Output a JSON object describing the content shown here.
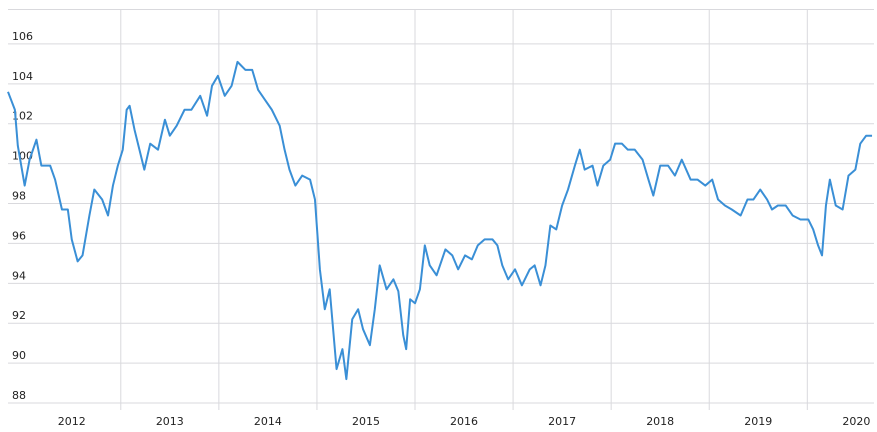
{
  "chart_data": {
    "type": "line",
    "x": [
      2011.85,
      2011.92,
      2011.95,
      2012.02,
      2012.07,
      2012.14,
      2012.19,
      2012.28,
      2012.33,
      2012.4,
      2012.46,
      2012.5,
      2012.56,
      2012.61,
      2012.68,
      2012.73,
      2012.81,
      2012.87,
      2012.92,
      2012.97,
      2013.02,
      2013.06,
      2013.09,
      2013.14,
      2013.19,
      2013.24,
      2013.3,
      2013.38,
      2013.45,
      2013.5,
      2013.57,
      2013.65,
      2013.72,
      2013.81,
      2013.88,
      2013.93,
      2013.99,
      2014.06,
      2014.13,
      2014.19,
      2014.27,
      2014.34,
      2014.4,
      2014.47,
      2014.54,
      2014.62,
      2014.67,
      2014.72,
      2014.78,
      2014.85,
      2014.93,
      2014.98,
      2015.03,
      2015.08,
      2015.13,
      2015.2,
      2015.26,
      2015.3,
      2015.36,
      2015.42,
      2015.47,
      2015.54,
      2015.59,
      2015.64,
      2015.71,
      2015.78,
      2015.83,
      2015.88,
      2015.91,
      2015.95,
      2016.0,
      2016.05,
      2016.1,
      2016.15,
      2016.22,
      2016.31,
      2016.38,
      2016.44,
      2016.51,
      2016.58,
      2016.64,
      2016.71,
      2016.79,
      2016.84,
      2016.89,
      2016.95,
      2017.02,
      2017.09,
      2017.17,
      2017.22,
      2017.28,
      2017.33,
      2017.38,
      2017.44,
      2017.5,
      2017.56,
      2017.63,
      2017.68,
      2017.73,
      2017.81,
      2017.86,
      2017.92,
      2017.99,
      2018.04,
      2018.11,
      2018.17,
      2018.24,
      2018.32,
      2018.38,
      2018.43,
      2018.5,
      2018.58,
      2018.65,
      2018.72,
      2018.81,
      2018.88,
      2018.96,
      2019.03,
      2019.09,
      2019.16,
      2019.23,
      2019.32,
      2019.39,
      2019.45,
      2019.52,
      2019.59,
      2019.64,
      2019.7,
      2019.78,
      2019.85,
      2019.93,
      2020.01,
      2020.06,
      2020.11,
      2020.15,
      2020.19,
      2020.23,
      2020.29,
      2020.36,
      2020.42,
      2020.49,
      2020.54,
      2020.6,
      2020.66
    ],
    "series": [
      {
        "color": "#3a8fd6",
        "values": [
          103.6,
          102.7,
          100.9,
          98.9,
          100.2,
          101.2,
          99.9,
          99.9,
          99.2,
          97.7,
          97.7,
          96.2,
          95.1,
          95.4,
          97.4,
          98.7,
          98.2,
          97.4,
          98.9,
          99.9,
          100.7,
          102.7,
          102.9,
          101.7,
          100.7,
          99.7,
          101.0,
          100.7,
          102.2,
          101.4,
          101.9,
          102.7,
          102.7,
          103.4,
          102.4,
          103.9,
          104.4,
          103.4,
          103.9,
          105.1,
          104.7,
          104.7,
          103.7,
          103.2,
          102.7,
          101.9,
          100.7,
          99.7,
          98.9,
          99.4,
          99.2,
          98.2,
          94.7,
          92.7,
          93.7,
          89.7,
          90.7,
          89.2,
          92.2,
          92.7,
          91.7,
          90.9,
          92.7,
          94.9,
          93.7,
          94.2,
          93.6,
          91.4,
          90.7,
          93.2,
          93.0,
          93.7,
          95.9,
          94.9,
          94.4,
          95.7,
          95.4,
          94.7,
          95.4,
          95.2,
          95.9,
          96.2,
          96.2,
          95.9,
          94.9,
          94.2,
          94.7,
          93.9,
          94.7,
          94.9,
          93.9,
          94.9,
          96.9,
          96.7,
          97.9,
          98.7,
          99.9,
          100.7,
          99.7,
          99.9,
          98.9,
          99.9,
          100.2,
          101.0,
          101.0,
          100.7,
          100.7,
          100.2,
          99.2,
          98.4,
          99.9,
          99.9,
          99.4,
          100.2,
          99.2,
          99.2,
          98.9,
          99.2,
          98.2,
          97.9,
          97.7,
          97.4,
          98.2,
          98.2,
          98.7,
          98.2,
          97.7,
          97.9,
          97.9,
          97.4,
          97.2,
          97.2,
          96.7,
          95.9,
          95.4,
          97.9,
          99.2,
          97.9,
          97.7,
          99.4,
          99.7,
          101.0,
          101.4,
          101.4
        ]
      }
    ],
    "xlim": [
      2011.85,
      2020.68
    ],
    "xticks": [
      {
        "value": 2012.5,
        "label": "2012"
      },
      {
        "value": 2013.5,
        "label": "2013"
      },
      {
        "value": 2014.5,
        "label": "2014"
      },
      {
        "value": 2015.5,
        "label": "2015"
      },
      {
        "value": 2016.5,
        "label": "2016"
      },
      {
        "value": 2017.5,
        "label": "2017"
      },
      {
        "value": 2018.5,
        "label": "2018"
      },
      {
        "value": 2019.5,
        "label": "2019"
      },
      {
        "value": 2020.5,
        "label": "2020"
      }
    ],
    "ylim": [
      87.65,
      107.7
    ],
    "yticks": [
      88,
      90,
      92,
      94,
      96,
      98,
      100,
      102,
      104,
      106
    ],
    "grid": true
  }
}
